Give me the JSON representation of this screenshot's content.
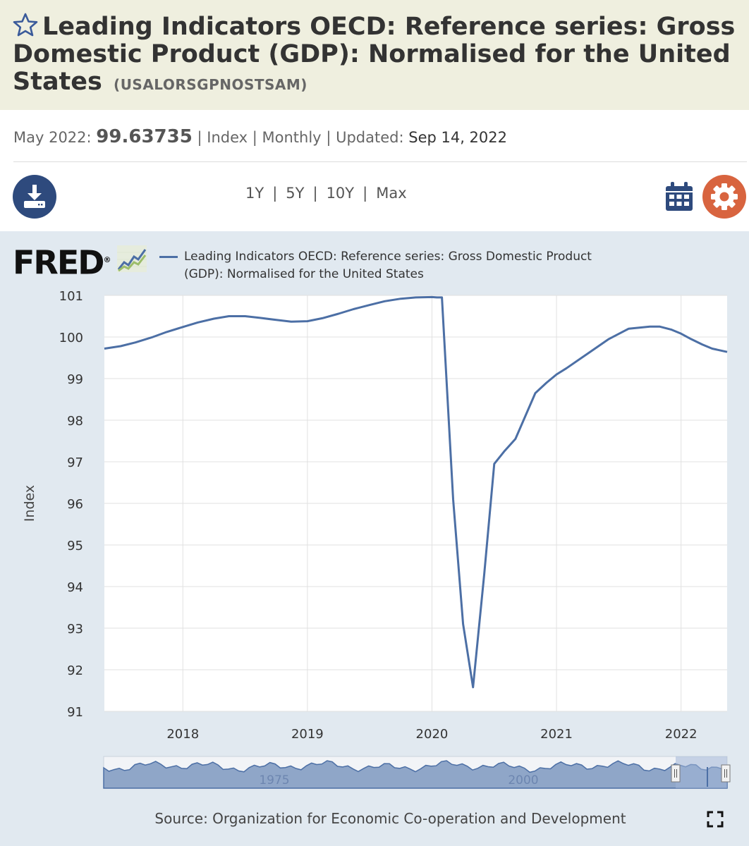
{
  "header": {
    "title": "Leading Indicators OECD: Reference series: Gross Domestic Product (GDP): Normalised for the United States",
    "series_id": "(USALORSGPNOSTSAM)"
  },
  "meta": {
    "period_label": "May 2022:",
    "value": "99.63735",
    "units": "Index",
    "frequency": "Monthly",
    "updated_label": "Updated:",
    "updated_date": "Sep 14, 2022",
    "separator": "|"
  },
  "toolbar": {
    "ranges": [
      "1Y",
      "5Y",
      "10Y",
      "Max"
    ],
    "download_icon": "download-icon",
    "calendar_icon": "calendar-icon",
    "settings_icon": "gear-icon"
  },
  "brand": {
    "logo_text": "FRED",
    "registered": "®"
  },
  "colors": {
    "series_line": "#4c6fa5",
    "title_band": "#efefdf",
    "chart_bg": "#e1e9f0",
    "download_button": "#2e4a7d",
    "settings_button": "#d8643f"
  },
  "chart_data": {
    "type": "line",
    "title": "",
    "legend": "Leading Indicators OECD: Reference series: Gross Domestic Product (GDP): Normalised for the United States",
    "ylabel": "Index",
    "xlabel": "",
    "ylim": [
      91,
      101
    ],
    "yticks": [
      91,
      92,
      93,
      94,
      95,
      96,
      97,
      98,
      99,
      100,
      101
    ],
    "xlim": [
      2017.37,
      2022.37
    ],
    "xticks": [
      2018,
      2019,
      2020,
      2021,
      2022
    ],
    "grid": true,
    "series": [
      {
        "name": "USALORSGPNOSTSAM",
        "x": [
          2017.37,
          2017.5,
          2017.62,
          2017.75,
          2017.87,
          2018.0,
          2018.12,
          2018.25,
          2018.37,
          2018.5,
          2018.62,
          2018.75,
          2018.87,
          2019.0,
          2019.12,
          2019.25,
          2019.37,
          2019.5,
          2019.62,
          2019.75,
          2019.87,
          2020.0,
          2020.04,
          2020.08,
          2020.17,
          2020.25,
          2020.33,
          2020.42,
          2020.5,
          2020.58,
          2020.67,
          2020.75,
          2020.83,
          2020.92,
          2021.0,
          2021.08,
          2021.25,
          2021.42,
          2021.58,
          2021.75,
          2021.83,
          2021.92,
          2022.0,
          2022.08,
          2022.17,
          2022.25,
          2022.37
        ],
        "values": [
          99.72,
          99.78,
          99.87,
          99.99,
          100.12,
          100.24,
          100.35,
          100.44,
          100.5,
          100.5,
          100.46,
          100.41,
          100.37,
          100.38,
          100.45,
          100.56,
          100.67,
          100.77,
          100.86,
          100.92,
          100.95,
          100.96,
          100.95,
          100.95,
          96.1,
          93.1,
          91.58,
          94.3,
          96.95,
          97.25,
          97.55,
          98.1,
          98.65,
          98.9,
          99.1,
          99.25,
          99.6,
          99.95,
          100.2,
          100.25,
          100.25,
          100.18,
          100.08,
          99.95,
          99.82,
          99.72,
          99.64
        ]
      }
    ],
    "navigator": {
      "tick_labels": [
        "1975",
        "2000"
      ]
    },
    "source": "Source: Organization for Economic Co-operation and Development"
  }
}
